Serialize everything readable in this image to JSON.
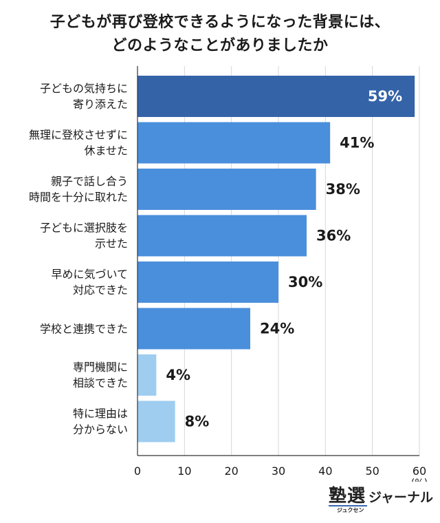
{
  "chart_data": {
    "type": "bar",
    "orientation": "horizontal",
    "title_lines": [
      "子どもが再び登校できるようになった背景には、",
      "どのようなことがありましたか"
    ],
    "categories": [
      [
        "子どもの気持ちに",
        "寄り添えた"
      ],
      [
        "無理に登校させずに",
        "休ませた"
      ],
      [
        "親子で話し合う",
        "時間を十分に取れた"
      ],
      [
        "子どもに選択肢を",
        "示せた"
      ],
      [
        "早めに気づいて",
        "対応できた"
      ],
      [
        "学校と連携できた"
      ],
      [
        "専門機関に",
        "相談できた"
      ],
      [
        "特に理由は",
        "分からない"
      ]
    ],
    "values": [
      59,
      41,
      38,
      36,
      30,
      24,
      4,
      8
    ],
    "value_labels": [
      "59%",
      "41%",
      "38%",
      "36%",
      "30%",
      "24%",
      "4%",
      "8%"
    ],
    "bar_colors": [
      "#3463a8",
      "#4a8fdc",
      "#4a8fdc",
      "#4a8fdc",
      "#4a8fdc",
      "#4a8fdc",
      "#9fcdf0",
      "#9fcdf0"
    ],
    "xlim": [
      0,
      60
    ],
    "xticks": [
      0,
      10,
      20,
      30,
      40,
      50,
      60
    ],
    "unit": "(%)",
    "grid": true
  },
  "logo": {
    "main": "塾選",
    "sub": "ジャーナル",
    "kana": "ジュクセン"
  }
}
